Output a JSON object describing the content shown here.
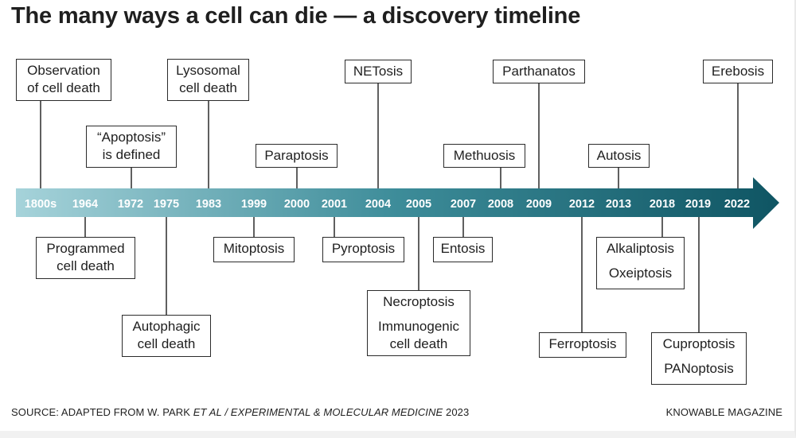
{
  "title": "The many ways a cell can die — a discovery timeline",
  "years": [
    "1800s",
    "1964",
    "1972",
    "1975",
    "1983",
    "1999",
    "2000",
    "2001",
    "2004",
    "2005",
    "2007",
    "2008",
    "2009",
    "2012",
    "2013",
    "2018",
    "2019",
    "2022"
  ],
  "events": {
    "observation": [
      "Observation",
      "of cell death"
    ],
    "apoptosis": [
      "“Apoptosis”",
      "is defined"
    ],
    "lysosomal": [
      "Lysosomal",
      "cell death"
    ],
    "paraptosis": [
      "Paraptosis"
    ],
    "netosis": [
      "NETosis"
    ],
    "methuosis": [
      "Methuosis"
    ],
    "parthanatos": [
      "Parthanatos"
    ],
    "autosis": [
      "Autosis"
    ],
    "erebosis": [
      "Erebosis"
    ],
    "programmed": [
      "Programmed",
      "cell death"
    ],
    "autophagic": [
      "Autophagic",
      "cell death"
    ],
    "mitoptosis": [
      "Mitoptosis"
    ],
    "pyroptosis": [
      "Pyroptosis"
    ],
    "necroptosis": [
      "Necroptosis"
    ],
    "immunogenic": [
      "Immunogenic",
      "cell death"
    ],
    "entosis": [
      "Entosis"
    ],
    "ferroptosis": [
      "Ferroptosis"
    ],
    "alkaliptosis": [
      "Alkaliptosis"
    ],
    "oxeiptosis": [
      "Oxeiptosis"
    ],
    "cuproptosis": [
      "Cuproptosis"
    ],
    "panoptosis": [
      "PANoptosis"
    ]
  },
  "footer": {
    "source_prefix": "SOURCE: ADAPTED FROM W. PARK ",
    "source_italic": "ET AL / EXPERIMENTAL & MOLECULAR MEDICINE",
    "source_year": " 2023",
    "credit": "KNOWABLE MAGAZINE"
  },
  "colors": {
    "arrow_start": "#a6d3da",
    "arrow_mid": "#3d8c99",
    "arrow_end": "#0f5563",
    "box_border": "#2b2b2b",
    "text": "#1f1f1f"
  }
}
